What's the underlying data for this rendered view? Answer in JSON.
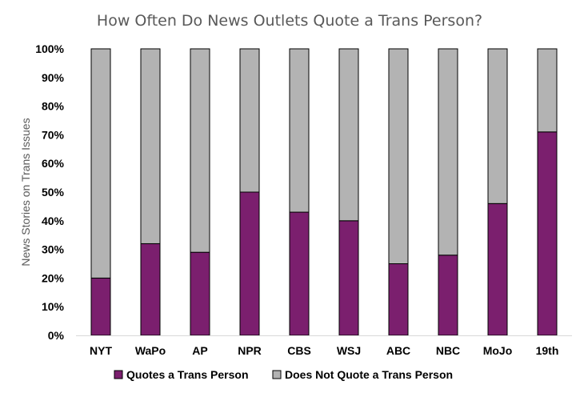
{
  "chart_data": {
    "type": "bar",
    "stacked": true,
    "title": "How Often Do News Outlets Quote a Trans Person?",
    "xlabel": "",
    "ylabel": "News Stories on Trans Issues",
    "ylim": [
      0,
      100
    ],
    "yticks": [
      "0%",
      "10%",
      "20%",
      "30%",
      "40%",
      "50%",
      "60%",
      "70%",
      "80%",
      "90%",
      "100%"
    ],
    "categories": [
      "NYT",
      "WaPo",
      "AP",
      "NPR",
      "CBS",
      "WSJ",
      "ABC",
      "NBC",
      "MoJo",
      "19th"
    ],
    "series": [
      {
        "name": "Quotes a Trans Person",
        "color": "#7B1F6E",
        "values": [
          20,
          32,
          29,
          50,
          43,
          40,
          25,
          28,
          46,
          71
        ]
      },
      {
        "name": "Does Not Quote a Trans Person",
        "color": "#B3B3B3",
        "values": [
          80,
          68,
          71,
          50,
          57,
          60,
          75,
          72,
          54,
          29
        ]
      }
    ],
    "legend_position": "bottom",
    "grid": false
  }
}
